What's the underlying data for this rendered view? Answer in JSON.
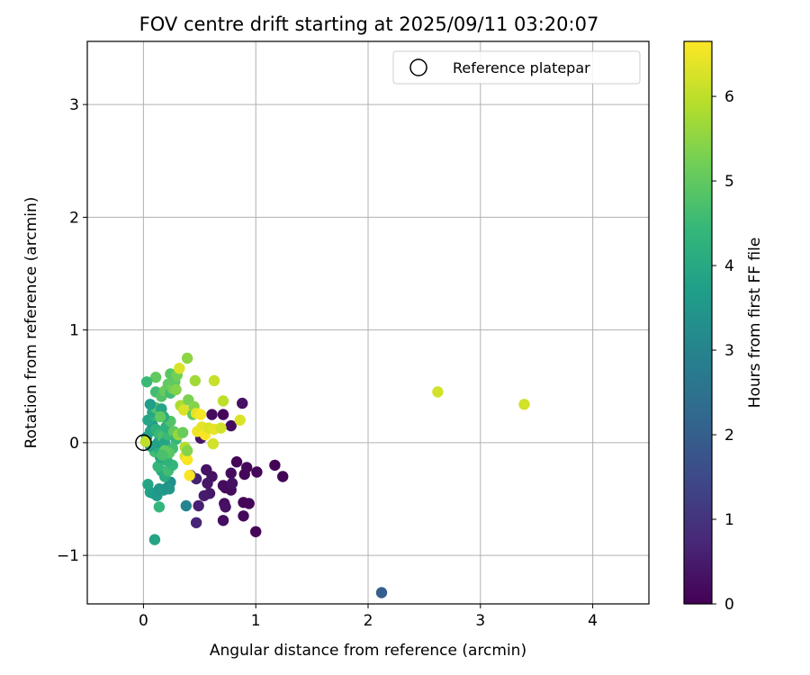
{
  "chart_data": {
    "type": "scatter",
    "title": "FOV centre drift starting at 2025/09/11 03:20:07",
    "xlabel": "Angular distance from reference (arcmin)",
    "ylabel": "Rotation from reference (arcmin)",
    "xlim": [
      -0.5,
      4.5
    ],
    "ylim": [
      -1.43,
      3.56
    ],
    "xticks": [
      0,
      1,
      2,
      3,
      4
    ],
    "xtick_labels": [
      "0",
      "1",
      "2",
      "3",
      "4"
    ],
    "yticks": [
      -1,
      0,
      1,
      2,
      3
    ],
    "ytick_labels": [
      "−1",
      "0",
      "1",
      "2",
      "3"
    ],
    "grid": true,
    "legend": {
      "placement": "top-right",
      "entries": [
        "Reference platepar"
      ]
    },
    "reference_point": {
      "x": 0.0,
      "y": 0.0,
      "marker": "open-circle",
      "color": "#000000"
    },
    "colorbar": {
      "label": "Hours from first FF file",
      "range": [
        0,
        6.65
      ],
      "ticks": [
        0,
        1,
        2,
        3,
        4,
        5,
        6
      ],
      "tick_labels": [
        "0",
        "1",
        "2",
        "3",
        "4",
        "5",
        "6"
      ],
      "colormap": [
        "#440154",
        "#482878",
        "#3e4989",
        "#31688e",
        "#26828e",
        "#1f9e89",
        "#35b779",
        "#6ece58",
        "#b5de2b",
        "#fde725"
      ]
    },
    "points": [
      {
        "x": 0.73,
        "y": -0.4,
        "t": 0.05
      },
      {
        "x": 0.9,
        "y": -0.28,
        "t": 0.1
      },
      {
        "x": 1.01,
        "y": -0.26,
        "t": 0.1
      },
      {
        "x": 1.17,
        "y": -0.2,
        "t": 0.05
      },
      {
        "x": 1.24,
        "y": -0.3,
        "t": 0.05
      },
      {
        "x": 0.83,
        "y": -0.17,
        "t": 0.1
      },
      {
        "x": 0.78,
        "y": -0.27,
        "t": 0.2
      },
      {
        "x": 0.92,
        "y": -0.22,
        "t": 0.15
      },
      {
        "x": 0.89,
        "y": -0.53,
        "t": 0.1
      },
      {
        "x": 0.94,
        "y": -0.54,
        "t": 0.1
      },
      {
        "x": 0.89,
        "y": -0.65,
        "t": 0.15
      },
      {
        "x": 1.0,
        "y": -0.79,
        "t": 0.1
      },
      {
        "x": 0.72,
        "y": -0.54,
        "t": 0.2
      },
      {
        "x": 0.71,
        "y": -0.69,
        "t": 0.25
      },
      {
        "x": 0.73,
        "y": -0.57,
        "t": 0.3
      },
      {
        "x": 0.71,
        "y": -0.38,
        "t": 0.2
      },
      {
        "x": 0.78,
        "y": -0.42,
        "t": 0.2
      },
      {
        "x": 0.79,
        "y": -0.36,
        "t": 0.3
      },
      {
        "x": 0.61,
        "y": -0.3,
        "t": 0.3
      },
      {
        "x": 0.56,
        "y": -0.24,
        "t": 0.3
      },
      {
        "x": 0.57,
        "y": -0.36,
        "t": 0.4
      },
      {
        "x": 0.59,
        "y": -0.45,
        "t": 0.4
      },
      {
        "x": 0.54,
        "y": -0.47,
        "t": 0.5
      },
      {
        "x": 0.49,
        "y": -0.56,
        "t": 0.6
      },
      {
        "x": 0.47,
        "y": -0.71,
        "t": 0.7
      },
      {
        "x": 0.47,
        "y": -0.32,
        "t": 0.6
      },
      {
        "x": 0.88,
        "y": 0.35,
        "t": 0.3
      },
      {
        "x": 0.78,
        "y": 0.15,
        "t": 0.2
      },
      {
        "x": 0.71,
        "y": 0.25,
        "t": 0.1
      },
      {
        "x": 0.61,
        "y": 0.25,
        "t": 0.2
      },
      {
        "x": 0.51,
        "y": 0.04,
        "t": 0.4
      },
      {
        "x": 0.42,
        "y": -0.29,
        "t": 1.0
      },
      {
        "x": 2.12,
        "y": -1.33,
        "t": 2.0
      },
      {
        "x": 0.38,
        "y": -0.56,
        "t": 3.0
      },
      {
        "x": 0.1,
        "y": -0.86,
        "t": 3.9
      },
      {
        "x": 0.14,
        "y": -0.57,
        "t": 4.4
      },
      {
        "x": 0.04,
        "y": -0.37,
        "t": 3.9
      },
      {
        "x": 0.06,
        "y": -0.44,
        "t": 3.8
      },
      {
        "x": 0.09,
        "y": -0.45,
        "t": 3.7
      },
      {
        "x": 0.12,
        "y": -0.47,
        "t": 3.6
      },
      {
        "x": 0.14,
        "y": -0.41,
        "t": 3.5
      },
      {
        "x": 0.18,
        "y": -0.42,
        "t": 3.6
      },
      {
        "x": 0.21,
        "y": -0.4,
        "t": 3.4
      },
      {
        "x": 0.24,
        "y": -0.35,
        "t": 3.3
      },
      {
        "x": 0.23,
        "y": -0.41,
        "t": 3.5
      },
      {
        "x": 0.19,
        "y": -0.3,
        "t": 4.1
      },
      {
        "x": 0.16,
        "y": -0.25,
        "t": 4.1
      },
      {
        "x": 0.13,
        "y": -0.21,
        "t": 4.4
      },
      {
        "x": 0.22,
        "y": -0.25,
        "t": 4.6
      },
      {
        "x": 0.26,
        "y": -0.2,
        "t": 4.4
      },
      {
        "x": 0.21,
        "y": -0.16,
        "t": 4.3
      },
      {
        "x": 0.15,
        "y": -0.13,
        "t": 4.0
      },
      {
        "x": 0.1,
        "y": -0.08,
        "t": 4.6
      },
      {
        "x": 0.14,
        "y": -0.06,
        "t": 4.2
      },
      {
        "x": 0.06,
        "y": -0.03,
        "t": 3.8
      },
      {
        "x": 0.03,
        "y": 0.05,
        "t": 3.7
      },
      {
        "x": 0.06,
        "y": 0.1,
        "t": 3.9
      },
      {
        "x": 0.08,
        "y": 0.16,
        "t": 3.6
      },
      {
        "x": 0.04,
        "y": 0.2,
        "t": 3.9
      },
      {
        "x": 0.1,
        "y": 0.24,
        "t": 4.3
      },
      {
        "x": 0.08,
        "y": 0.27,
        "t": 4.0
      },
      {
        "x": 0.11,
        "y": 0.12,
        "t": 4.2
      },
      {
        "x": 0.14,
        "y": 0.07,
        "t": 4.5
      },
      {
        "x": 0.13,
        "y": 0.0,
        "t": 3.8
      },
      {
        "x": 0.17,
        "y": 0.05,
        "t": 4.7
      },
      {
        "x": 0.19,
        "y": 0.0,
        "t": 3.9
      },
      {
        "x": 0.22,
        "y": 0.07,
        "t": 4.5
      },
      {
        "x": 0.2,
        "y": 0.14,
        "t": 4.2
      },
      {
        "x": 0.24,
        "y": 0.19,
        "t": 4.8
      },
      {
        "x": 0.27,
        "y": 0.1,
        "t": 5.0
      },
      {
        "x": 0.29,
        "y": 0.03,
        "t": 4.4
      },
      {
        "x": 0.26,
        "y": -0.05,
        "t": 4.6
      },
      {
        "x": 0.23,
        "y": -0.09,
        "t": 4.9
      },
      {
        "x": 0.19,
        "y": -0.07,
        "t": 5.0
      },
      {
        "x": 0.17,
        "y": -0.11,
        "t": 4.7
      },
      {
        "x": 0.11,
        "y": 0.31,
        "t": 4.8
      },
      {
        "x": 0.06,
        "y": 0.34,
        "t": 3.7
      },
      {
        "x": 0.16,
        "y": 0.3,
        "t": 3.9
      },
      {
        "x": 0.18,
        "y": 0.23,
        "t": 4.1
      },
      {
        "x": 0.15,
        "y": 0.23,
        "t": 5.0
      },
      {
        "x": 0.11,
        "y": 0.45,
        "t": 4.6
      },
      {
        "x": 0.16,
        "y": 0.41,
        "t": 4.8
      },
      {
        "x": 0.19,
        "y": 0.46,
        "t": 5.1
      },
      {
        "x": 0.22,
        "y": 0.52,
        "t": 5.0
      },
      {
        "x": 0.24,
        "y": 0.44,
        "t": 4.6
      },
      {
        "x": 0.26,
        "y": 0.48,
        "t": 5.2
      },
      {
        "x": 0.28,
        "y": 0.54,
        "t": 5.0
      },
      {
        "x": 0.29,
        "y": 0.47,
        "t": 5.4
      },
      {
        "x": 0.24,
        "y": 0.61,
        "t": 4.9
      },
      {
        "x": 0.3,
        "y": 0.6,
        "t": 5.2
      },
      {
        "x": 0.11,
        "y": 0.58,
        "t": 5.0
      },
      {
        "x": 0.03,
        "y": 0.54,
        "t": 4.5
      },
      {
        "x": 0.39,
        "y": 0.75,
        "t": 5.5
      },
      {
        "x": 0.32,
        "y": 0.66,
        "t": 6.3
      },
      {
        "x": 0.33,
        "y": 0.33,
        "t": 5.8
      },
      {
        "x": 0.36,
        "y": 0.29,
        "t": 6.3
      },
      {
        "x": 0.4,
        "y": 0.38,
        "t": 5.3
      },
      {
        "x": 0.44,
        "y": 0.25,
        "t": 5.0
      },
      {
        "x": 0.45,
        "y": 0.32,
        "t": 5.4
      },
      {
        "x": 0.46,
        "y": 0.55,
        "t": 5.7
      },
      {
        "x": 0.63,
        "y": 0.55,
        "t": 6.1
      },
      {
        "x": 0.71,
        "y": 0.37,
        "t": 6.0
      },
      {
        "x": 0.47,
        "y": 0.26,
        "t": 6.4
      },
      {
        "x": 0.51,
        "y": 0.25,
        "t": 6.6
      },
      {
        "x": 0.48,
        "y": 0.1,
        "t": 6.5
      },
      {
        "x": 0.52,
        "y": 0.14,
        "t": 6.4
      },
      {
        "x": 0.55,
        "y": 0.07,
        "t": 6.6
      },
      {
        "x": 0.58,
        "y": 0.13,
        "t": 6.3
      },
      {
        "x": 0.63,
        "y": 0.12,
        "t": 6.4
      },
      {
        "x": 0.69,
        "y": 0.13,
        "t": 6.2
      },
      {
        "x": 0.62,
        "y": -0.01,
        "t": 6.2
      },
      {
        "x": 0.37,
        "y": -0.04,
        "t": 5.9
      },
      {
        "x": 0.37,
        "y": -0.12,
        "t": 6.3
      },
      {
        "x": 0.39,
        "y": -0.15,
        "t": 6.6
      },
      {
        "x": 0.41,
        "y": -0.29,
        "t": 6.6
      },
      {
        "x": 0.31,
        "y": 0.07,
        "t": 5.6
      },
      {
        "x": 0.35,
        "y": 0.09,
        "t": 5.1
      },
      {
        "x": 0.39,
        "y": -0.07,
        "t": 5.4
      },
      {
        "x": 0.02,
        "y": 0.01,
        "t": 6.0
      },
      {
        "x": 0.86,
        "y": 0.2,
        "t": 6.3
      },
      {
        "x": 2.62,
        "y": 0.45,
        "t": 6.2
      },
      {
        "x": 3.39,
        "y": 0.34,
        "t": 6.2
      }
    ]
  }
}
